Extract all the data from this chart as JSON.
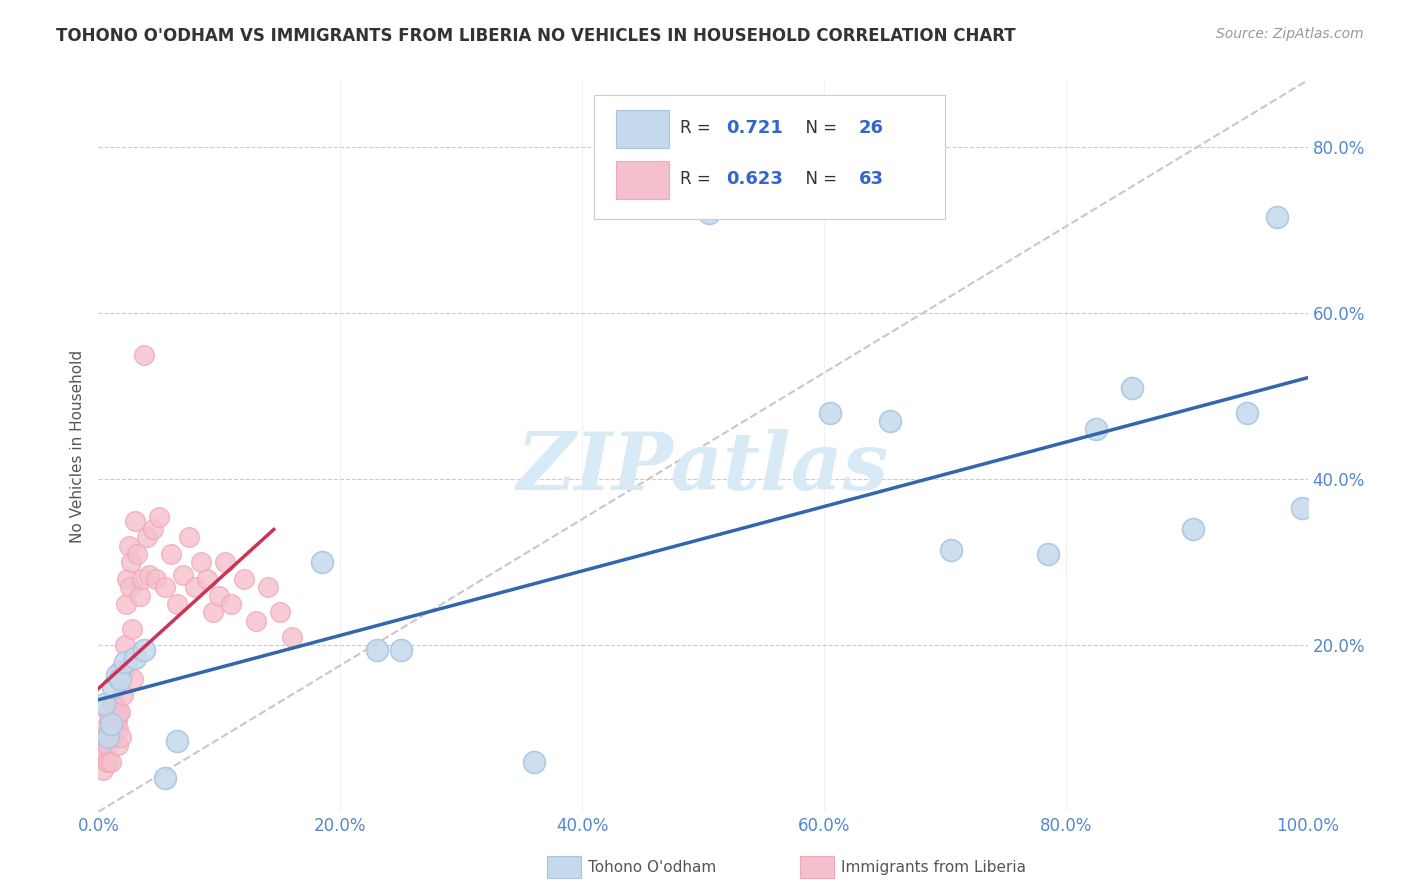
{
  "title": "TOHONO O'ODHAM VS IMMIGRANTS FROM LIBERIA NO VEHICLES IN HOUSEHOLD CORRELATION CHART",
  "source": "Source: ZipAtlas.com",
  "ylabel": "No Vehicles in Household",
  "legend1_label": "R =  0.721   N = 26",
  "legend2_label": "R =  0.623   N = 63",
  "legend_bottom1": "Tohono O'odham",
  "legend_bottom2": "Immigrants from Liberia",
  "blue_color": "#A8C4E0",
  "pink_color": "#F0A8B8",
  "blue_fill": "#C5D9ED",
  "pink_fill": "#F5C0CE",
  "blue_line_color": "#3366AA",
  "pink_line_color": "#CC3355",
  "diag_color": "#C8C8C8",
  "R_blue_val": "0.721",
  "N_blue_val": "26",
  "R_pink_val": "0.623",
  "N_pink_val": "63",
  "R_color": "#3366CC",
  "N_color": "#3366CC",
  "watermark_text": "ZIPatlas",
  "watermark_color": "#D8EAF5",
  "background_color": "#FFFFFF",
  "grid_color": "#CCCCCC",
  "ytick_color": "#5588CC",
  "xtick_color": "#5588CC",
  "blue_x": [
    0.005,
    0.008,
    0.01,
    0.012,
    0.015,
    0.018,
    0.022,
    0.03,
    0.038,
    0.055,
    0.065,
    0.185,
    0.23,
    0.25,
    0.36,
    0.505,
    0.605,
    0.655,
    0.705,
    0.785,
    0.825,
    0.855,
    0.905,
    0.95,
    0.975,
    0.995
  ],
  "blue_y": [
    0.13,
    0.09,
    0.105,
    0.15,
    0.165,
    0.16,
    0.18,
    0.185,
    0.195,
    0.04,
    0.085,
    0.3,
    0.195,
    0.195,
    0.06,
    0.72,
    0.48,
    0.47,
    0.315,
    0.31,
    0.46,
    0.51,
    0.34,
    0.48,
    0.715,
    0.365
  ],
  "pink_x": [
    0.002,
    0.003,
    0.004,
    0.005,
    0.005,
    0.006,
    0.007,
    0.007,
    0.008,
    0.008,
    0.009,
    0.01,
    0.01,
    0.011,
    0.012,
    0.012,
    0.013,
    0.014,
    0.015,
    0.015,
    0.016,
    0.016,
    0.017,
    0.018,
    0.018,
    0.019,
    0.02,
    0.021,
    0.022,
    0.023,
    0.024,
    0.025,
    0.026,
    0.027,
    0.028,
    0.029,
    0.03,
    0.032,
    0.034,
    0.036,
    0.038,
    0.04,
    0.042,
    0.045,
    0.048,
    0.05,
    0.055,
    0.06,
    0.065,
    0.07,
    0.075,
    0.08,
    0.085,
    0.09,
    0.095,
    0.1,
    0.105,
    0.11,
    0.12,
    0.13,
    0.14,
    0.15,
    0.16
  ],
  "pink_y": [
    0.09,
    0.08,
    0.05,
    0.1,
    0.07,
    0.09,
    0.08,
    0.06,
    0.12,
    0.06,
    0.11,
    0.09,
    0.06,
    0.13,
    0.13,
    0.1,
    0.095,
    0.13,
    0.11,
    0.12,
    0.1,
    0.08,
    0.12,
    0.17,
    0.12,
    0.09,
    0.14,
    0.17,
    0.2,
    0.25,
    0.28,
    0.32,
    0.27,
    0.3,
    0.22,
    0.16,
    0.35,
    0.31,
    0.26,
    0.28,
    0.55,
    0.33,
    0.285,
    0.34,
    0.28,
    0.355,
    0.27,
    0.31,
    0.25,
    0.285,
    0.33,
    0.27,
    0.3,
    0.28,
    0.24,
    0.26,
    0.3,
    0.25,
    0.28,
    0.23,
    0.27,
    0.24,
    0.21
  ]
}
